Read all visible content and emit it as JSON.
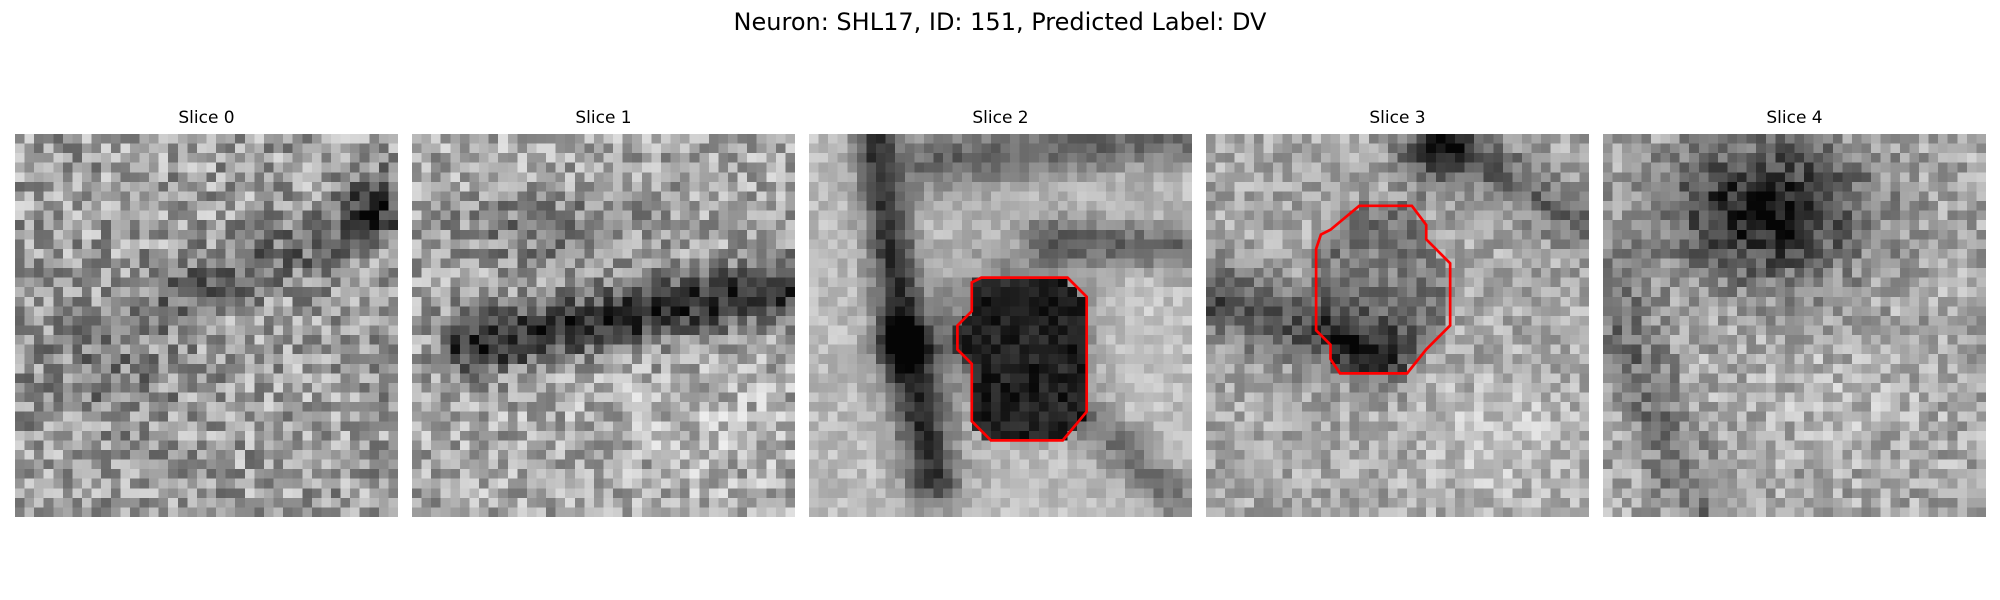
{
  "figure": {
    "title": "Neuron: SHL17, ID: 151, Predicted Label: DV"
  },
  "slices": [
    {
      "title": "Slice 0",
      "image": "grayscale-em-patch",
      "roi_outline": false
    },
    {
      "title": "Slice 1",
      "image": "grayscale-em-patch",
      "roi_outline": false
    },
    {
      "title": "Slice 2",
      "image": "grayscale-em-patch",
      "roi_outline": true
    },
    {
      "title": "Slice 3",
      "image": "grayscale-em-patch",
      "roi_outline": true
    },
    {
      "title": "Slice 4",
      "image": "grayscale-em-patch",
      "roi_outline": false
    }
  ],
  "colors": {
    "roi_outline": "#ff0000"
  }
}
